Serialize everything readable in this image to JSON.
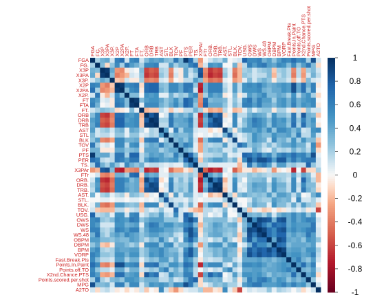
{
  "chart_data": {
    "type": "heatmap",
    "variables": [
      "FGA",
      "FG.",
      "X3P",
      "X3PA",
      "X3P.",
      "X2P",
      "X2PA",
      "X2P.",
      "FT",
      "FTA",
      "FT.",
      "ORB",
      "DRB",
      "TRB",
      "AST",
      "STL",
      "BLK",
      "TOV",
      "PF",
      "PTS",
      "PER",
      "TS.",
      "X3PAr",
      "FTr",
      "ORB.",
      "DRB.",
      "TRB.",
      "AST.",
      "STL.",
      "BLK.",
      "TOV.",
      "USG.",
      "OWS",
      "DWS",
      "WS",
      "WS.48",
      "OBPM",
      "DBPM",
      "BPM",
      "VORP",
      "Fast.Break.Pts",
      "Points.In.Paint",
      "Points.off.TO",
      "X2nd.Chance.PTS",
      "Points.scored.per.shot",
      "MPG",
      "A2TO"
    ],
    "value_range": [
      -1,
      1
    ],
    "colorbar_ticks": [
      1,
      0.8,
      0.6,
      0.4,
      0.2,
      0,
      -0.2,
      -0.4,
      -0.6,
      -0.8,
      -1
    ],
    "colorbar_labels": [
      "1",
      "0.8",
      "0.6",
      "0.4",
      "0.2",
      "0",
      "-0.2",
      "-0.4",
      "-0.6",
      "-0.8",
      "-1"
    ],
    "colors": {
      "positive": "#053061",
      "neutral": "#f7f7f7",
      "negative": "#67001f",
      "labels": "#cc2222"
    },
    "lower_triangle_values": [
      [],
      [
        0.2
      ],
      [
        0.35,
        0.3
      ],
      [
        0.4,
        -0.1,
        0.95
      ],
      [
        0.1,
        0.25,
        0.4,
        0.3
      ],
      [
        0.6,
        0.55,
        -0.3,
        -0.4,
        -0.15
      ],
      [
        0.7,
        0.2,
        -0.35,
        -0.3,
        -0.2,
        0.95
      ],
      [
        0.1,
        0.65,
        -0.05,
        -0.2,
        0.1,
        0.55,
        0.3
      ],
      [
        0.55,
        0.45,
        0.05,
        0.1,
        -0.05,
        0.6,
        0.55,
        0.3
      ],
      [
        0.6,
        0.35,
        0.0,
        0.05,
        -0.05,
        0.65,
        0.6,
        0.3,
        0.95
      ],
      [
        0.1,
        0.2,
        0.3,
        0.25,
        0.2,
        -0.1,
        -0.05,
        0.0,
        0.3,
        0.05
      ],
      [
        0.3,
        0.55,
        -0.6,
        -0.65,
        -0.4,
        0.7,
        0.7,
        0.5,
        0.45,
        0.55,
        -0.2
      ],
      [
        0.45,
        0.55,
        -0.5,
        -0.55,
        -0.35,
        0.75,
        0.75,
        0.45,
        0.5,
        0.55,
        -0.15,
        0.8
      ],
      [
        0.4,
        0.6,
        -0.55,
        -0.6,
        -0.4,
        0.75,
        0.75,
        0.5,
        0.5,
        0.55,
        -0.15,
        0.92,
        0.95
      ],
      [
        0.45,
        0.1,
        0.2,
        0.25,
        0.1,
        0.3,
        0.35,
        0.05,
        0.4,
        0.35,
        0.15,
        0.0,
        0.2,
        0.15
      ],
      [
        0.3,
        0.1,
        0.15,
        0.15,
        0.05,
        0.25,
        0.25,
        0.05,
        0.25,
        0.25,
        0.05,
        0.1,
        0.2,
        0.15,
        0.45
      ],
      [
        0.25,
        0.45,
        -0.35,
        -0.4,
        -0.25,
        0.55,
        0.55,
        0.35,
        0.35,
        0.4,
        -0.15,
        0.6,
        0.65,
        0.65,
        0.05,
        0.25
      ],
      [
        0.65,
        0.2,
        0.05,
        0.1,
        0.0,
        0.55,
        0.55,
        0.15,
        0.5,
        0.55,
        0.05,
        0.3,
        0.4,
        0.35,
        0.6,
        0.35,
        0.3
      ],
      [
        0.35,
        0.35,
        -0.05,
        -0.05,
        -0.05,
        0.4,
        0.4,
        0.25,
        0.3,
        0.35,
        -0.05,
        0.4,
        0.4,
        0.4,
        0.2,
        0.3,
        0.4,
        0.4
      ],
      [
        0.95,
        0.35,
        0.4,
        0.4,
        0.15,
        0.65,
        0.65,
        0.2,
        0.75,
        0.75,
        0.15,
        0.3,
        0.45,
        0.4,
        0.45,
        0.3,
        0.25,
        0.6,
        0.35
      ],
      [
        0.7,
        0.6,
        0.15,
        0.1,
        0.15,
        0.65,
        0.6,
        0.45,
        0.65,
        0.65,
        0.15,
        0.45,
        0.6,
        0.55,
        0.45,
        0.4,
        0.45,
        0.5,
        0.25,
        0.75
      ],
      [
        0.2,
        0.7,
        0.35,
        0.2,
        0.45,
        0.25,
        0.1,
        0.55,
        0.35,
        0.25,
        0.35,
        0.1,
        0.15,
        0.15,
        0.1,
        0.05,
        0.1,
        0.05,
        0.05,
        0.35,
        0.6
      ],
      [
        -0.3,
        -0.2,
        0.8,
        0.85,
        0.3,
        -0.7,
        -0.75,
        -0.3,
        -0.35,
        -0.4,
        0.2,
        -0.7,
        -0.6,
        -0.65,
        0.05,
        0.0,
        -0.45,
        -0.25,
        -0.25,
        -0.05,
        -0.15,
        0.15
      ],
      [
        0.0,
        0.1,
        -0.35,
        -0.4,
        -0.25,
        0.35,
        0.35,
        0.2,
        0.7,
        0.75,
        -0.1,
        0.45,
        0.35,
        0.4,
        0.05,
        0.05,
        0.25,
        0.2,
        0.2,
        0.15,
        0.25,
        0.15,
        -0.5
      ],
      [
        0.1,
        0.5,
        -0.65,
        -0.7,
        -0.45,
        0.6,
        0.6,
        0.5,
        0.3,
        0.4,
        -0.25,
        0.9,
        0.65,
        0.78,
        -0.1,
        0.0,
        0.55,
        0.15,
        0.3,
        0.15,
        0.35,
        0.05,
        -0.75,
        0.45
      ],
      [
        0.2,
        0.45,
        -0.55,
        -0.6,
        -0.4,
        0.6,
        0.6,
        0.4,
        0.35,
        0.4,
        -0.2,
        0.7,
        0.9,
        0.85,
        0.0,
        0.1,
        0.6,
        0.2,
        0.25,
        0.2,
        0.45,
        0.05,
        -0.65,
        0.3,
        0.65
      ],
      [
        0.15,
        0.5,
        -0.6,
        -0.65,
        -0.45,
        0.6,
        0.6,
        0.45,
        0.35,
        0.4,
        -0.25,
        0.82,
        0.85,
        0.9,
        -0.05,
        0.05,
        0.6,
        0.2,
        0.3,
        0.2,
        0.45,
        0.05,
        -0.7,
        0.4,
        0.85,
        0.95
      ],
      [
        0.35,
        0.0,
        0.2,
        0.25,
        0.05,
        0.15,
        0.2,
        -0.05,
        0.3,
        0.25,
        0.15,
        -0.1,
        0.05,
        0.0,
        0.9,
        0.35,
        -0.05,
        0.45,
        0.1,
        0.35,
        0.35,
        0.05,
        0.1,
        0.0,
        -0.2,
        -0.1,
        -0.15
      ],
      [
        0.0,
        0.0,
        0.05,
        0.05,
        0.0,
        0.05,
        0.05,
        0.0,
        0.05,
        0.05,
        0.0,
        0.05,
        0.0,
        0.05,
        0.25,
        0.8,
        0.15,
        0.1,
        0.1,
        0.05,
        0.2,
        0.05,
        0.0,
        0.05,
        0.05,
        0.05,
        0.05,
        0.2
      ],
      [
        0.05,
        0.35,
        -0.4,
        -0.45,
        -0.3,
        0.45,
        0.45,
        0.3,
        0.25,
        0.3,
        -0.2,
        0.55,
        0.55,
        0.55,
        -0.05,
        0.15,
        0.9,
        0.15,
        0.3,
        0.1,
        0.35,
        0.05,
        -0.5,
        0.25,
        0.5,
        0.55,
        0.55,
        -0.1,
        0.15
      ],
      [
        0.1,
        -0.15,
        -0.2,
        -0.2,
        -0.2,
        0.15,
        0.15,
        -0.05,
        0.1,
        0.15,
        -0.15,
        0.15,
        0.05,
        0.1,
        0.25,
        0.05,
        0.05,
        0.7,
        0.1,
        0.05,
        -0.1,
        -0.2,
        -0.25,
        0.15,
        0.15,
        0.05,
        0.1,
        0.3,
        0.0,
        0.05
      ],
      [
        0.75,
        0.15,
        0.2,
        0.25,
        0.05,
        0.5,
        0.5,
        0.1,
        0.55,
        0.6,
        0.05,
        0.15,
        0.3,
        0.25,
        0.45,
        0.15,
        0.1,
        0.55,
        0.1,
        0.75,
        0.55,
        0.1,
        -0.05,
        0.15,
        0.0,
        0.1,
        0.05,
        0.4,
        0.0,
        0.0,
        0.2
      ],
      [
        0.55,
        0.6,
        0.25,
        0.2,
        0.3,
        0.55,
        0.5,
        0.45,
        0.65,
        0.6,
        0.25,
        0.35,
        0.45,
        0.45,
        0.45,
        0.25,
        0.25,
        0.25,
        0.1,
        0.7,
        0.85,
        0.65,
        -0.05,
        0.25,
        0.25,
        0.3,
        0.3,
        0.3,
        0.1,
        0.2,
        -0.15,
        0.35
      ],
      [
        0.55,
        0.45,
        0.1,
        0.1,
        0.1,
        0.5,
        0.5,
        0.35,
        0.4,
        0.45,
        0.05,
        0.45,
        0.65,
        0.6,
        0.4,
        0.5,
        0.5,
        0.35,
        0.4,
        0.55,
        0.65,
        0.3,
        -0.2,
        0.2,
        0.3,
        0.45,
        0.4,
        0.25,
        0.35,
        0.4,
        0.05,
        0.3,
        0.55
      ],
      [
        0.6,
        0.6,
        0.2,
        0.15,
        0.25,
        0.6,
        0.55,
        0.45,
        0.6,
        0.6,
        0.2,
        0.4,
        0.55,
        0.55,
        0.5,
        0.4,
        0.4,
        0.3,
        0.25,
        0.7,
        0.85,
        0.55,
        -0.1,
        0.25,
        0.3,
        0.4,
        0.35,
        0.3,
        0.25,
        0.3,
        -0.05,
        0.35,
        0.9,
        0.85
      ],
      [
        0.35,
        0.65,
        0.25,
        0.15,
        0.35,
        0.45,
        0.35,
        0.55,
        0.45,
        0.4,
        0.25,
        0.35,
        0.45,
        0.45,
        0.35,
        0.3,
        0.35,
        0.15,
        0.1,
        0.45,
        0.85,
        0.65,
        -0.05,
        0.2,
        0.35,
        0.4,
        0.4,
        0.25,
        0.2,
        0.3,
        -0.15,
        0.2,
        0.85,
        0.65,
        0.9
      ],
      [
        0.45,
        0.45,
        0.3,
        0.3,
        0.25,
        0.35,
        0.3,
        0.3,
        0.45,
        0.4,
        0.25,
        0.15,
        0.3,
        0.25,
        0.55,
        0.3,
        0.1,
        0.3,
        0.05,
        0.55,
        0.75,
        0.45,
        0.1,
        0.15,
        0.05,
        0.2,
        0.15,
        0.45,
        0.2,
        0.05,
        -0.1,
        0.4,
        0.8,
        0.45,
        0.7,
        0.7
      ],
      [
        0.25,
        0.4,
        -0.15,
        -0.2,
        -0.05,
        0.4,
        0.4,
        0.3,
        0.2,
        0.3,
        -0.05,
        0.5,
        0.55,
        0.55,
        0.25,
        0.5,
        0.55,
        0.15,
        0.3,
        0.3,
        0.45,
        0.15,
        -0.3,
        0.2,
        0.45,
        0.5,
        0.5,
        0.2,
        0.45,
        0.5,
        0.0,
        0.1,
        0.35,
        0.75,
        0.55,
        0.55,
        0.4
      ],
      [
        0.45,
        0.55,
        0.2,
        0.15,
        0.2,
        0.45,
        0.4,
        0.4,
        0.45,
        0.45,
        0.2,
        0.3,
        0.45,
        0.45,
        0.55,
        0.4,
        0.3,
        0.3,
        0.15,
        0.55,
        0.8,
        0.45,
        -0.05,
        0.2,
        0.25,
        0.35,
        0.3,
        0.45,
        0.35,
        0.3,
        -0.1,
        0.35,
        0.8,
        0.65,
        0.8,
        0.75,
        0.88,
        0.7
      ],
      [
        0.6,
        0.5,
        0.25,
        0.25,
        0.2,
        0.5,
        0.5,
        0.35,
        0.5,
        0.5,
        0.2,
        0.3,
        0.5,
        0.45,
        0.55,
        0.4,
        0.35,
        0.4,
        0.2,
        0.65,
        0.8,
        0.45,
        0.0,
        0.2,
        0.2,
        0.35,
        0.3,
        0.45,
        0.3,
        0.3,
        -0.05,
        0.45,
        0.85,
        0.7,
        0.85,
        0.75,
        0.8,
        0.65,
        0.9
      ],
      [
        0.55,
        0.3,
        0.15,
        0.15,
        0.1,
        0.45,
        0.45,
        0.2,
        0.35,
        0.35,
        0.05,
        0.2,
        0.3,
        0.25,
        0.45,
        0.45,
        0.2,
        0.4,
        0.15,
        0.55,
        0.45,
        0.2,
        -0.05,
        0.15,
        0.1,
        0.15,
        0.15,
        0.35,
        0.35,
        0.15,
        0.05,
        0.4,
        0.4,
        0.4,
        0.45,
        0.35,
        0.4,
        0.3,
        0.4,
        0.45
      ],
      [
        0.7,
        0.55,
        -0.35,
        -0.4,
        -0.2,
        0.85,
        0.85,
        0.5,
        0.55,
        0.6,
        -0.1,
        0.65,
        0.65,
        0.7,
        0.3,
        0.25,
        0.5,
        0.5,
        0.35,
        0.7,
        0.65,
        0.25,
        -0.7,
        0.4,
        0.55,
        0.55,
        0.55,
        0.15,
        0.05,
        0.4,
        0.15,
        0.55,
        0.55,
        0.5,
        0.55,
        0.45,
        0.35,
        0.4,
        0.45,
        0.5,
        0.45
      ],
      [
        0.55,
        0.25,
        0.15,
        0.15,
        0.05,
        0.4,
        0.4,
        0.15,
        0.35,
        0.35,
        0.1,
        0.15,
        0.25,
        0.2,
        0.45,
        0.6,
        0.2,
        0.35,
        0.2,
        0.55,
        0.45,
        0.15,
        0.0,
        0.15,
        0.05,
        0.15,
        0.1,
        0.4,
        0.55,
        0.15,
        0.05,
        0.4,
        0.4,
        0.45,
        0.45,
        0.35,
        0.4,
        0.4,
        0.45,
        0.5,
        0.6,
        0.45
      ],
      [
        0.6,
        0.45,
        -0.25,
        -0.3,
        -0.2,
        0.7,
        0.7,
        0.4,
        0.45,
        0.5,
        -0.1,
        0.8,
        0.6,
        0.7,
        0.1,
        0.15,
        0.5,
        0.35,
        0.3,
        0.6,
        0.6,
        0.15,
        -0.6,
        0.4,
        0.75,
        0.55,
        0.65,
        0.0,
        0.1,
        0.45,
        0.15,
        0.5,
        0.5,
        0.45,
        0.5,
        0.4,
        0.25,
        0.4,
        0.35,
        0.4,
        0.35,
        0.7,
        0.35
      ],
      [
        0.2,
        0.65,
        0.2,
        0.1,
        0.3,
        0.35,
        0.25,
        0.5,
        0.5,
        0.45,
        0.25,
        0.35,
        0.35,
        0.35,
        0.15,
        0.15,
        0.3,
        0.1,
        0.15,
        0.4,
        0.65,
        0.75,
        -0.1,
        0.3,
        0.35,
        0.3,
        0.35,
        0.05,
        0.1,
        0.25,
        -0.05,
        0.25,
        0.6,
        0.45,
        0.6,
        0.65,
        0.5,
        0.35,
        0.5,
        0.45,
        0.25,
        0.4,
        0.3,
        0.4
      ],
      [
        0.85,
        0.3,
        0.3,
        0.35,
        0.1,
        0.6,
        0.6,
        0.2,
        0.55,
        0.55,
        0.1,
        0.3,
        0.5,
        0.45,
        0.5,
        0.45,
        0.3,
        0.55,
        0.5,
        0.85,
        0.65,
        0.25,
        -0.1,
        0.05,
        0.15,
        0.3,
        0.25,
        0.35,
        0.2,
        0.2,
        0.05,
        0.45,
        0.55,
        0.65,
        0.65,
        0.45,
        0.45,
        0.45,
        0.5,
        0.6,
        0.45,
        0.6,
        0.45,
        0.5,
        0.25
      ],
      [
        0.1,
        -0.1,
        0.1,
        0.15,
        0.05,
        -0.05,
        0.0,
        -0.1,
        0.0,
        -0.05,
        0.1,
        -0.15,
        0.0,
        -0.05,
        0.55,
        0.1,
        -0.15,
        -0.3,
        -0.1,
        0.05,
        0.1,
        0.1,
        0.2,
        -0.2,
        -0.2,
        -0.05,
        -0.1,
        0.55,
        0.05,
        -0.15,
        -0.6,
        0.0,
        0.1,
        0.05,
        0.1,
        0.1,
        0.25,
        0.05,
        0.2,
        0.15,
        0.1,
        0.0,
        0.1,
        -0.1,
        0.0,
        0.1
      ]
    ]
  }
}
